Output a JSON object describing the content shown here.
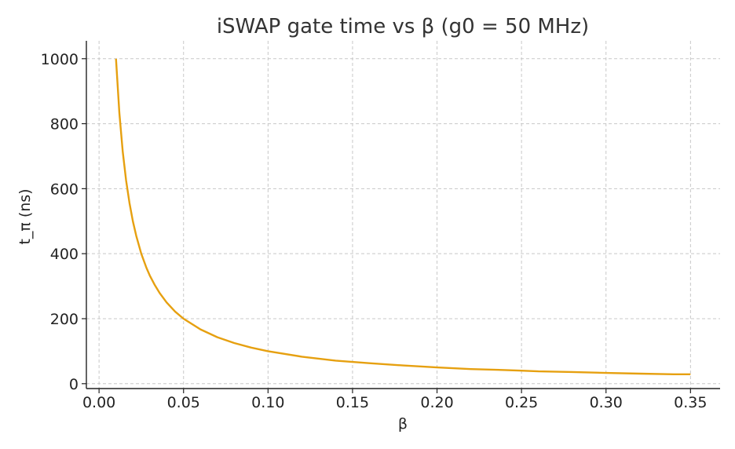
{
  "chart_data": {
    "type": "line",
    "title": "iSWAP gate time vs β  (g0 = 50 MHz)",
    "xlabel": "β",
    "ylabel": "t_π (ns)",
    "xlim": [
      -0.0075,
      0.3675
    ],
    "ylim": [
      -15,
      1055
    ],
    "xticks": [
      0.0,
      0.05,
      0.1,
      0.15,
      0.2,
      0.25,
      0.3,
      0.35
    ],
    "xtick_labels": [
      "0.00",
      "0.05",
      "0.10",
      "0.15",
      "0.20",
      "0.25",
      "0.30",
      "0.35"
    ],
    "yticks": [
      0,
      200,
      400,
      600,
      800,
      1000
    ],
    "ytick_labels": [
      "0",
      "200",
      "400",
      "600",
      "800",
      "1000"
    ],
    "grid": true,
    "series": [
      {
        "color": "#E6A010",
        "x": [
          0.01,
          0.012,
          0.014,
          0.016,
          0.018,
          0.02,
          0.022,
          0.025,
          0.028,
          0.03,
          0.033,
          0.036,
          0.04,
          0.045,
          0.05,
          0.06,
          0.07,
          0.08,
          0.09,
          0.1,
          0.12,
          0.14,
          0.15,
          0.16,
          0.18,
          0.2,
          0.22,
          0.24,
          0.25,
          0.26,
          0.28,
          0.3,
          0.32,
          0.34,
          0.35
        ],
        "y": [
          1000,
          833,
          714,
          625,
          556,
          500,
          455,
          400,
          357,
          333,
          303,
          278,
          250,
          222,
          200,
          167,
          143,
          125,
          111,
          100,
          83,
          71,
          67,
          63,
          56,
          50,
          45,
          42,
          40,
          38,
          36,
          33,
          31,
          29,
          29
        ]
      }
    ]
  }
}
